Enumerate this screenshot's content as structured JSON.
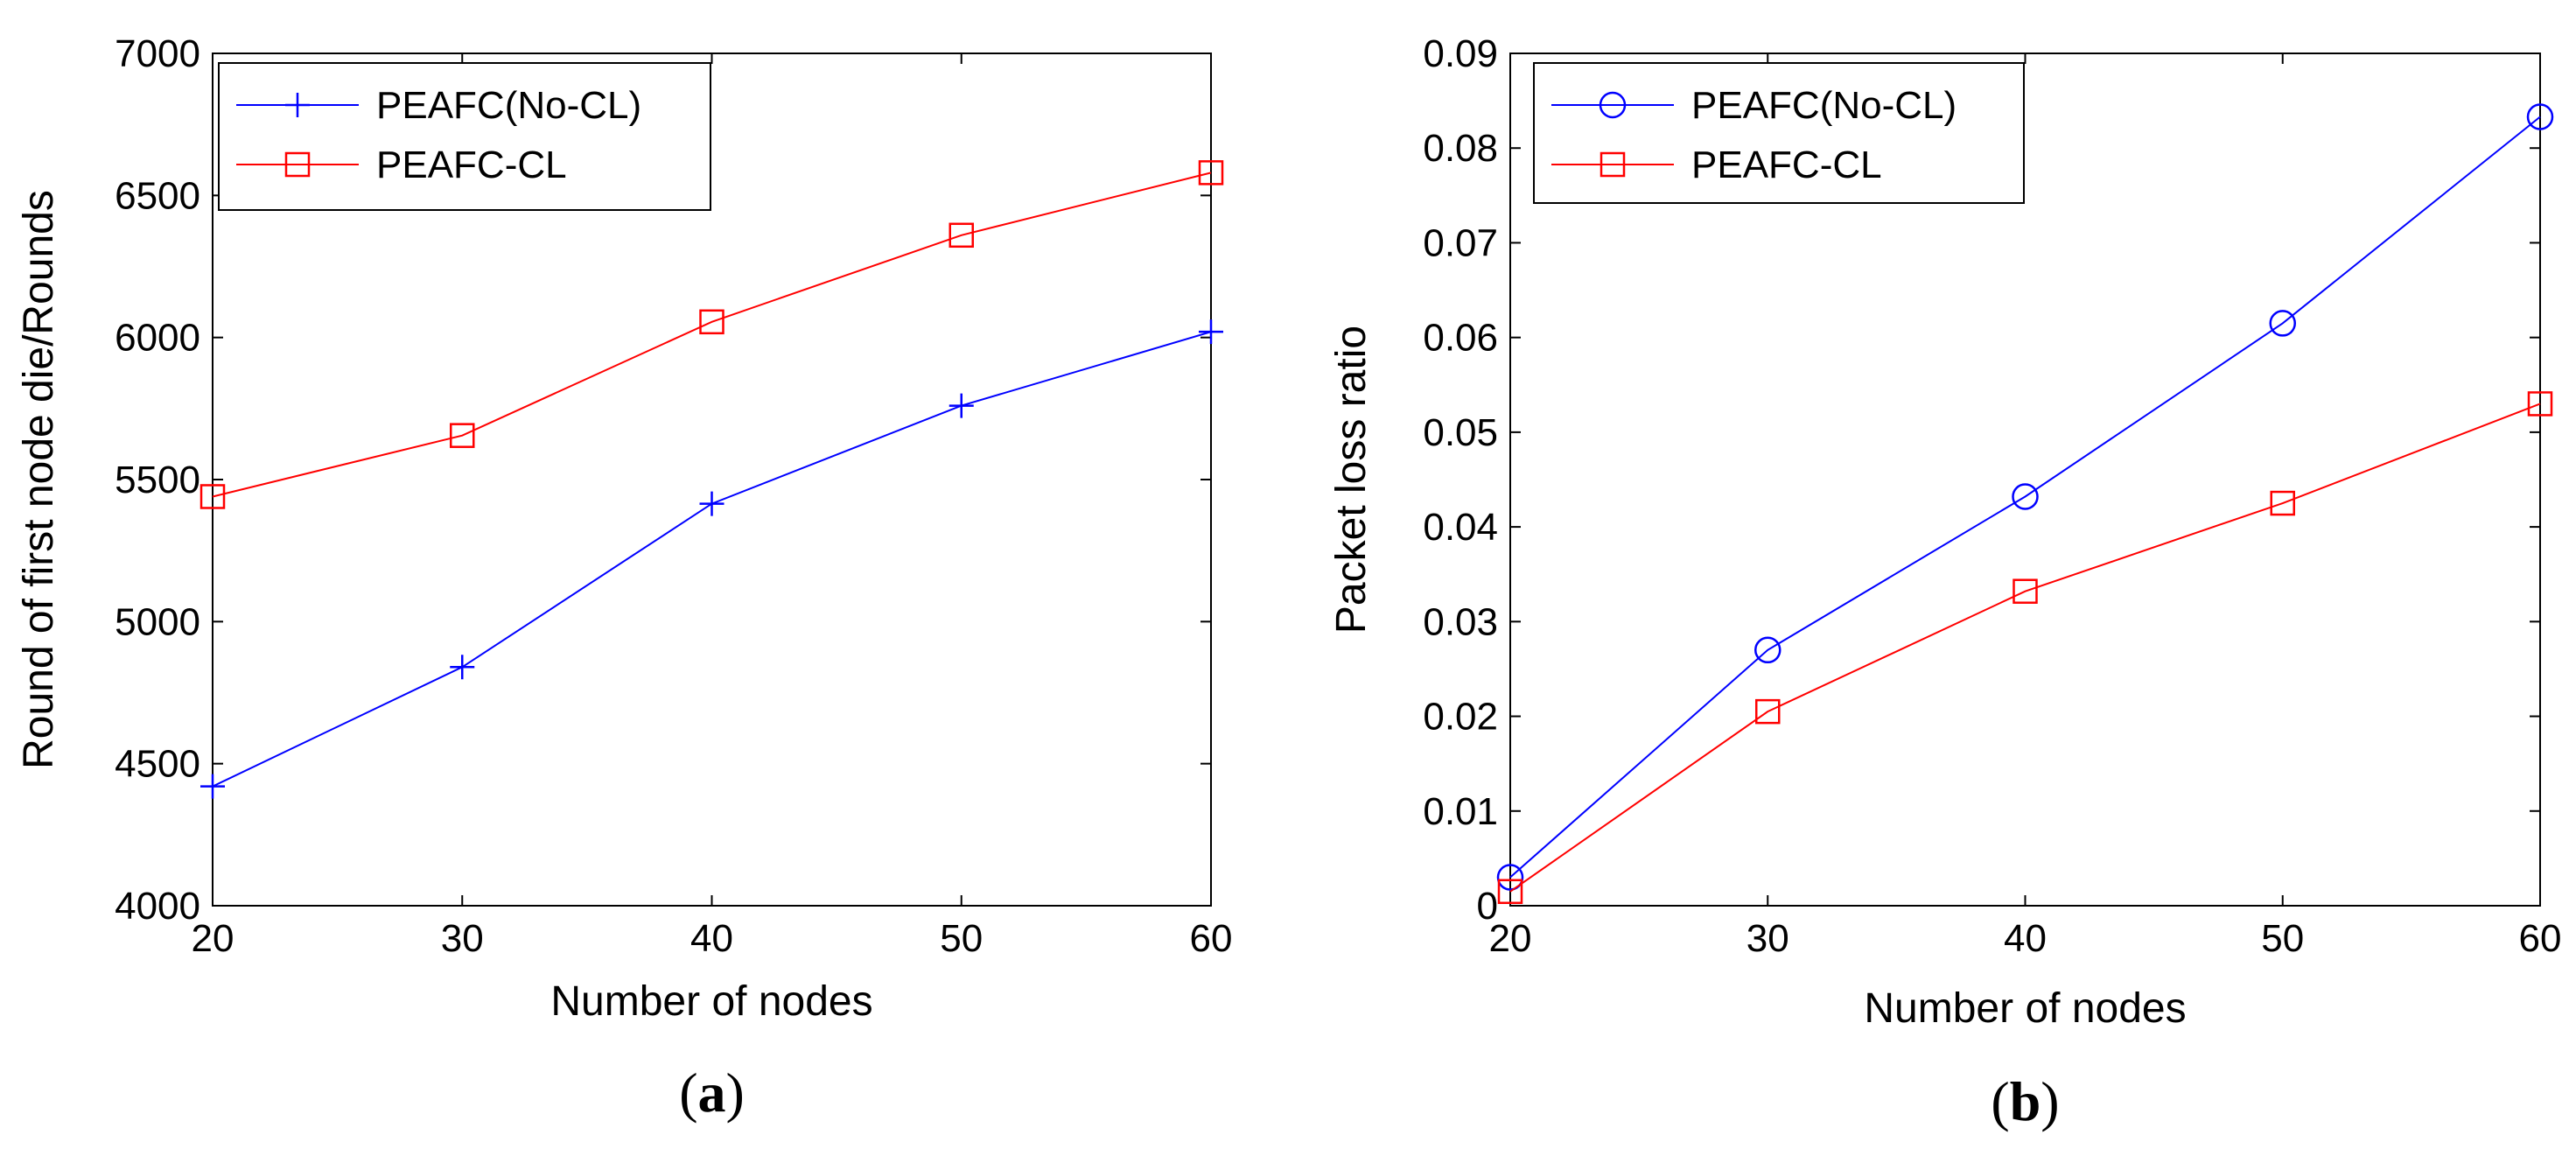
{
  "chart_data": [
    {
      "id": "a",
      "type": "line",
      "caption_open": "(",
      "caption_letter": "a",
      "caption_close": ")",
      "xlabel": "Number of nodes",
      "ylabel": "Round of first node die/Rounds",
      "xlim": [
        20,
        60
      ],
      "ylim": [
        4000,
        7000
      ],
      "xticks": [
        20,
        30,
        40,
        50,
        60
      ],
      "yticks": [
        4000,
        4500,
        5000,
        5500,
        6000,
        6500,
        7000
      ],
      "x": [
        20,
        30,
        40,
        50,
        60
      ],
      "legend_position": "top-left",
      "grid": false,
      "series": [
        {
          "name": "PEAFC(No-CL)",
          "color": "#0000ff",
          "marker": "plus",
          "values": [
            4420,
            4840,
            5415,
            5760,
            6020
          ]
        },
        {
          "name": "PEAFC-CL",
          "color": "#ff0000",
          "marker": "square",
          "values": [
            5440,
            5655,
            6055,
            6360,
            6580
          ]
        }
      ]
    },
    {
      "id": "b",
      "type": "line",
      "caption_open": "(",
      "caption_letter": "b",
      "caption_close": ")",
      "xlabel": "Number of nodes",
      "ylabel": "Packet loss ratio",
      "xlim": [
        20,
        60
      ],
      "ylim": [
        0,
        0.09
      ],
      "xticks": [
        20,
        30,
        40,
        50,
        60
      ],
      "yticks": [
        0,
        0.01,
        0.02,
        0.03,
        0.04,
        0.05,
        0.06,
        0.07,
        0.08,
        0.09
      ],
      "x": [
        20,
        30,
        40,
        50,
        60
      ],
      "legend_position": "top-left",
      "grid": false,
      "series": [
        {
          "name": "PEAFC(No-CL)",
          "color": "#0000ff",
          "marker": "circle",
          "values": [
            0.003,
            0.027,
            0.0432,
            0.0615,
            0.0833
          ]
        },
        {
          "name": "PEAFC-CL",
          "color": "#ff0000",
          "marker": "square",
          "values": [
            0.0015,
            0.0205,
            0.0332,
            0.0425,
            0.053
          ]
        }
      ]
    }
  ]
}
